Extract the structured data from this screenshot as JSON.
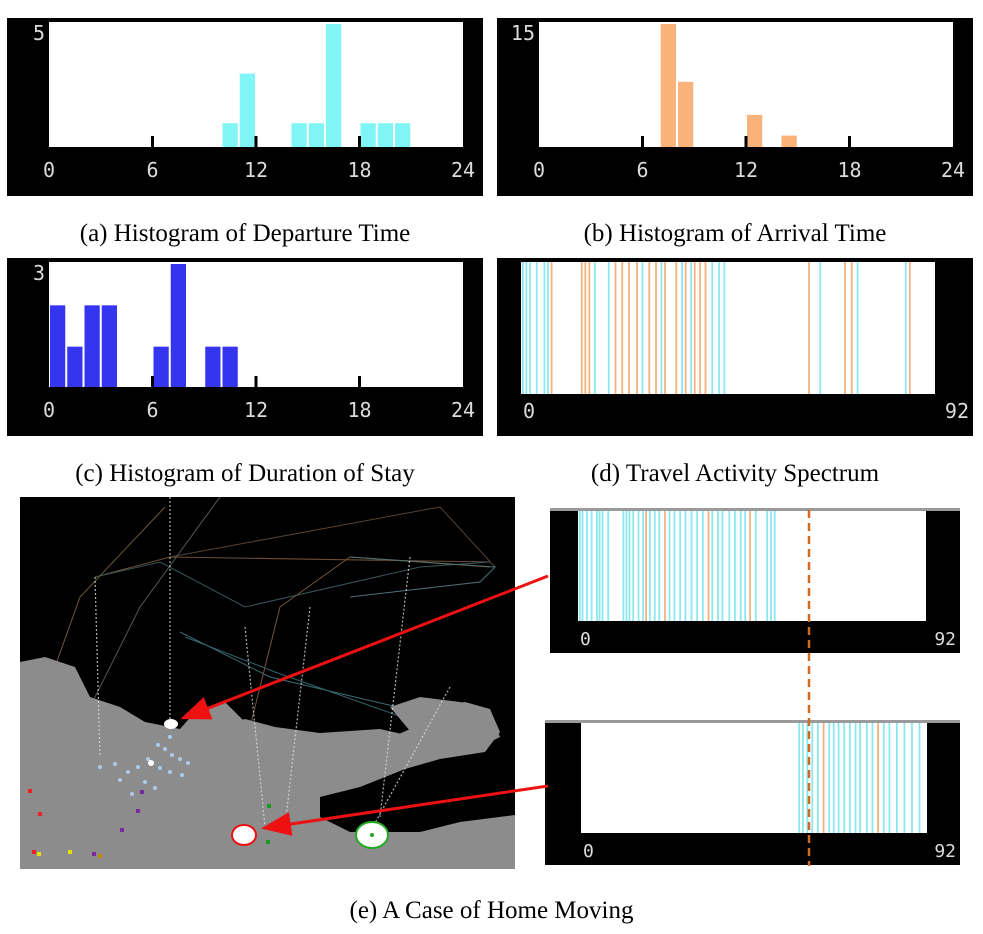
{
  "chart_data": [
    {
      "type": "bar",
      "id": "a",
      "caption": "(a) Histogram of Departure Time",
      "y_max_label": "5",
      "ylim": [
        0,
        5
      ],
      "xlim": [
        0,
        24
      ],
      "xticks": [
        "0",
        "6",
        "12",
        "18",
        "24"
      ],
      "bar_color": "#7ff6f5",
      "bins": [
        {
          "x": 11,
          "value": 1
        },
        {
          "x": 12,
          "value": 3
        },
        {
          "x": 15,
          "value": 1
        },
        {
          "x": 16,
          "value": 1
        },
        {
          "x": 17,
          "value": 5
        },
        {
          "x": 19,
          "value": 1
        },
        {
          "x": 20,
          "value": 1
        },
        {
          "x": 21,
          "value": 1
        }
      ]
    },
    {
      "type": "bar",
      "id": "b",
      "caption": "(b) Histogram of Arrival Time",
      "y_max_label": "15",
      "ylim": [
        0,
        15
      ],
      "xlim": [
        0,
        24
      ],
      "xticks": [
        "0",
        "6",
        "12",
        "18",
        "24"
      ],
      "bar_color": "#f9b27a",
      "bins": [
        {
          "x": 8,
          "value": 15
        },
        {
          "x": 9,
          "value": 8
        },
        {
          "x": 13,
          "value": 4
        },
        {
          "x": 15,
          "value": 1.5
        }
      ]
    },
    {
      "type": "bar",
      "id": "c",
      "caption": "(c) Histogram of Duration of Stay",
      "y_max_label": "3",
      "ylim": [
        0,
        3
      ],
      "xlim": [
        0,
        24
      ],
      "xticks": [
        "0",
        "6",
        "12",
        "18",
        "24"
      ],
      "bar_color": "#3535f0",
      "bins": [
        {
          "x": 1,
          "value": 2
        },
        {
          "x": 2,
          "value": 1
        },
        {
          "x": 3,
          "value": 2
        },
        {
          "x": 4,
          "value": 2
        },
        {
          "x": 7,
          "value": 1
        },
        {
          "x": 8,
          "value": 3
        },
        {
          "x": 10,
          "value": 1
        },
        {
          "x": 11,
          "value": 1
        }
      ]
    },
    {
      "type": "spectrum",
      "id": "d",
      "caption": "(d) Travel Activity Spectrum",
      "xlim": [
        0,
        92
      ],
      "xticks": [
        "0",
        "92"
      ],
      "events": [
        {
          "t": 0.4,
          "c": "cyan"
        },
        {
          "t": 1.2,
          "c": "cyan"
        },
        {
          "t": 2.0,
          "c": "cyan"
        },
        {
          "t": 3.5,
          "c": "cyan"
        },
        {
          "t": 5.2,
          "c": "cyan"
        },
        {
          "t": 6.0,
          "c": "cyan"
        },
        {
          "t": 6.8,
          "c": "orange"
        },
        {
          "t": 13.5,
          "c": "orange"
        },
        {
          "t": 14.3,
          "c": "orange"
        },
        {
          "t": 15.2,
          "c": "orange"
        },
        {
          "t": 16.4,
          "c": "cyan"
        },
        {
          "t": 19.5,
          "c": "cyan"
        },
        {
          "t": 21.0,
          "c": "orange"
        },
        {
          "t": 22.5,
          "c": "orange"
        },
        {
          "t": 24.0,
          "c": "orange"
        },
        {
          "t": 25.8,
          "c": "orange"
        },
        {
          "t": 27.0,
          "c": "cyan"
        },
        {
          "t": 28.5,
          "c": "orange"
        },
        {
          "t": 30.0,
          "c": "orange"
        },
        {
          "t": 31.2,
          "c": "cyan"
        },
        {
          "t": 32.0,
          "c": "orange"
        },
        {
          "t": 34.5,
          "c": "orange"
        },
        {
          "t": 35.8,
          "c": "cyan"
        },
        {
          "t": 36.6,
          "c": "orange"
        },
        {
          "t": 37.8,
          "c": "cyan"
        },
        {
          "t": 38.6,
          "c": "orange"
        },
        {
          "t": 39.8,
          "c": "orange"
        },
        {
          "t": 41.0,
          "c": "orange"
        },
        {
          "t": 42.5,
          "c": "cyan"
        },
        {
          "t": 44.0,
          "c": "cyan"
        },
        {
          "t": 45.2,
          "c": "cyan"
        },
        {
          "t": 64.0,
          "c": "orange"
        },
        {
          "t": 66.5,
          "c": "cyan"
        },
        {
          "t": 72.0,
          "c": "orange"
        },
        {
          "t": 73.5,
          "c": "orange"
        },
        {
          "t": 74.8,
          "c": "cyan"
        },
        {
          "t": 85.5,
          "c": "cyan"
        },
        {
          "t": 86.4,
          "c": "orange"
        }
      ]
    },
    {
      "type": "spectrum",
      "id": "e-top",
      "xlim": [
        0,
        92
      ],
      "xticks": [
        "0",
        "92"
      ],
      "events": [
        {
          "t": 0.5,
          "c": "cyan"
        },
        {
          "t": 1.2,
          "c": "cyan"
        },
        {
          "t": 2.4,
          "c": "cyan"
        },
        {
          "t": 3.6,
          "c": "cyan"
        },
        {
          "t": 5.0,
          "c": "cyan"
        },
        {
          "t": 5.7,
          "c": "cyan"
        },
        {
          "t": 6.5,
          "c": "cyan"
        },
        {
          "t": 8.0,
          "c": "cyan"
        },
        {
          "t": 12.0,
          "c": "cyan"
        },
        {
          "t": 12.8,
          "c": "cyan"
        },
        {
          "t": 13.6,
          "c": "cyan"
        },
        {
          "t": 14.6,
          "c": "cyan"
        },
        {
          "t": 16.0,
          "c": "cyan"
        },
        {
          "t": 17.2,
          "c": "cyan"
        },
        {
          "t": 18.0,
          "c": "orange"
        },
        {
          "t": 19.0,
          "c": "cyan"
        },
        {
          "t": 20.3,
          "c": "cyan"
        },
        {
          "t": 21.5,
          "c": "cyan"
        },
        {
          "t": 23.0,
          "c": "orange"
        },
        {
          "t": 24.2,
          "c": "cyan"
        },
        {
          "t": 25.5,
          "c": "cyan"
        },
        {
          "t": 27.0,
          "c": "cyan"
        },
        {
          "t": 28.4,
          "c": "cyan"
        },
        {
          "t": 30.0,
          "c": "cyan"
        },
        {
          "t": 31.5,
          "c": "cyan"
        },
        {
          "t": 33.0,
          "c": "cyan"
        },
        {
          "t": 34.5,
          "c": "orange"
        },
        {
          "t": 35.5,
          "c": "cyan"
        },
        {
          "t": 37.0,
          "c": "cyan"
        },
        {
          "t": 38.2,
          "c": "cyan"
        },
        {
          "t": 40.0,
          "c": "cyan"
        },
        {
          "t": 41.5,
          "c": "cyan"
        },
        {
          "t": 43.0,
          "c": "cyan"
        },
        {
          "t": 44.2,
          "c": "cyan"
        },
        {
          "t": 45.5,
          "c": "orange"
        },
        {
          "t": 47.0,
          "c": "cyan"
        },
        {
          "t": 50.0,
          "c": "cyan"
        },
        {
          "t": 51.0,
          "c": "cyan"
        },
        {
          "t": 52.0,
          "c": "cyan"
        }
      ]
    },
    {
      "type": "spectrum",
      "id": "e-bottom",
      "xlim": [
        0,
        92
      ],
      "xticks": [
        "0",
        "92"
      ],
      "events": [
        {
          "t": 58.0,
          "c": "cyan"
        },
        {
          "t": 59.0,
          "c": "cyan"
        },
        {
          "t": 60.2,
          "c": "cyan"
        },
        {
          "t": 61.5,
          "c": "cyan"
        },
        {
          "t": 63.0,
          "c": "cyan"
        },
        {
          "t": 64.5,
          "c": "orange"
        },
        {
          "t": 66.0,
          "c": "cyan"
        },
        {
          "t": 67.2,
          "c": "cyan"
        },
        {
          "t": 68.5,
          "c": "cyan"
        },
        {
          "t": 70.0,
          "c": "cyan"
        },
        {
          "t": 71.5,
          "c": "cyan"
        },
        {
          "t": 73.0,
          "c": "cyan"
        },
        {
          "t": 74.2,
          "c": "cyan"
        },
        {
          "t": 76.0,
          "c": "cyan"
        },
        {
          "t": 77.5,
          "c": "cyan"
        },
        {
          "t": 79.0,
          "c": "orange"
        },
        {
          "t": 80.5,
          "c": "cyan"
        },
        {
          "t": 82.0,
          "c": "cyan"
        },
        {
          "t": 84.0,
          "c": "cyan"
        },
        {
          "t": 86.0,
          "c": "cyan"
        },
        {
          "t": 88.0,
          "c": "cyan"
        },
        {
          "t": 90.0,
          "c": "cyan"
        }
      ]
    }
  ],
  "map": {
    "caption": "(e) A Case of Home Moving",
    "colors": {
      "background": "#000000",
      "land": "#8c8c8c",
      "water": "#000000",
      "arrow": "#ee1111",
      "divider": "#d2691e"
    }
  },
  "palette": {
    "cyan": "#8be8f0",
    "orange": "#f3b27e"
  }
}
